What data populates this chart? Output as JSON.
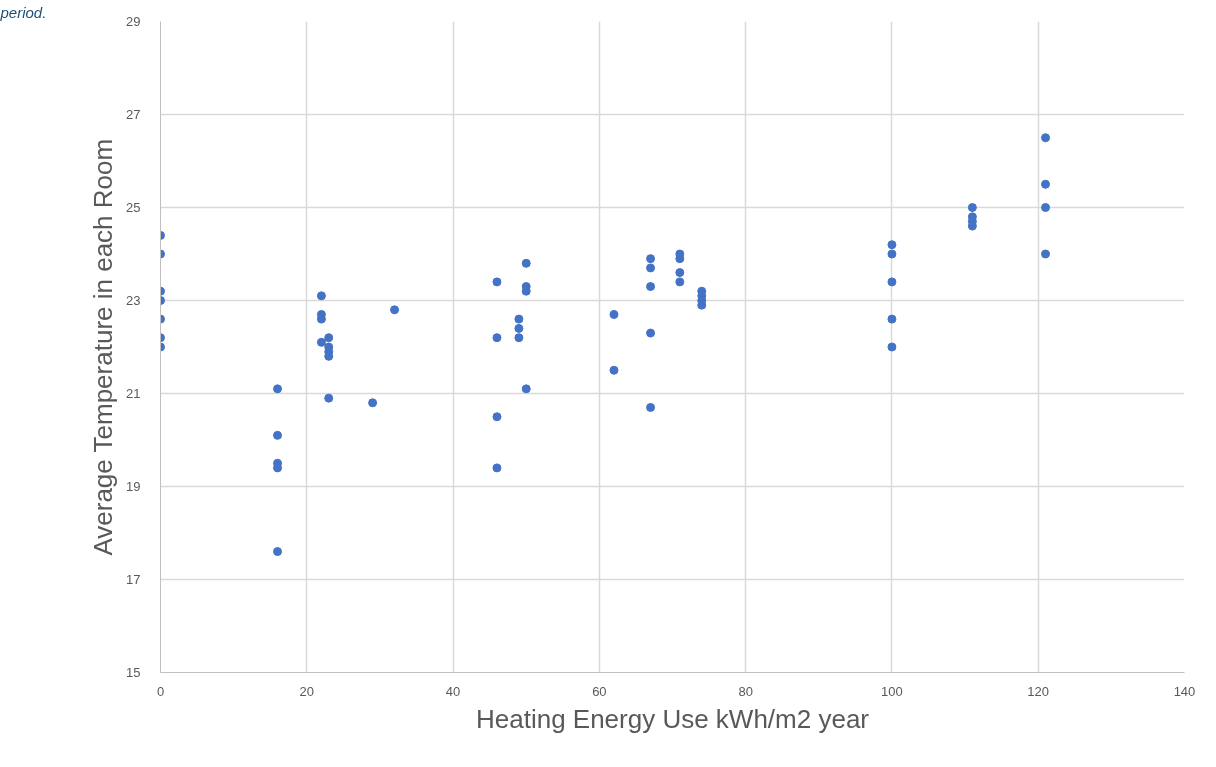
{
  "chart_data": {
    "type": "scatter",
    "xlabel": "Heating Energy Use kWh/m2 year",
    "ylabel": "Average Temperature in each Room",
    "annotations": [
      "period."
    ],
    "series": [
      {
        "color": "#4472c4",
        "x": [
          0,
          0,
          0,
          0,
          0,
          0,
          0,
          16,
          16,
          16,
          16,
          16,
          22,
          22,
          22,
          22,
          23,
          23,
          23,
          23,
          23,
          29,
          32,
          46,
          46,
          46,
          46,
          49,
          49,
          49,
          50,
          50,
          50,
          50,
          62,
          62,
          67,
          67,
          67,
          67,
          67,
          71,
          71,
          71,
          71,
          74,
          74,
          74,
          74,
          100,
          100,
          100,
          100,
          100,
          111,
          111,
          111,
          111,
          121,
          121,
          121,
          121
        ],
        "values": [
          24.4,
          24.0,
          23.2,
          23.0,
          22.6,
          22.2,
          22.0,
          21.1,
          20.1,
          19.5,
          19.4,
          17.6,
          23.1,
          22.7,
          22.6,
          22.1,
          22.2,
          22.0,
          21.9,
          21.8,
          20.9,
          20.8,
          22.8,
          23.4,
          22.2,
          20.5,
          19.4,
          22.6,
          22.4,
          22.2,
          23.8,
          23.3,
          23.2,
          21.1,
          22.7,
          21.5,
          23.9,
          23.7,
          23.3,
          22.3,
          20.7,
          24.0,
          23.9,
          23.6,
          23.4,
          23.2,
          23.1,
          23.0,
          22.9,
          24.2,
          24.0,
          23.4,
          22.6,
          22.0,
          25.0,
          24.8,
          24.7,
          24.6,
          26.5,
          25.5,
          25.0,
          24.0
        ]
      }
    ],
    "xlim": [
      0,
      140
    ],
    "xticks": [
      0,
      20,
      40,
      60,
      80,
      100,
      120,
      140
    ],
    "ylim": [
      15,
      29
    ],
    "yticks": [
      15,
      17,
      19,
      21,
      23,
      25,
      27,
      29
    ],
    "grid": true,
    "marker": "circle"
  }
}
